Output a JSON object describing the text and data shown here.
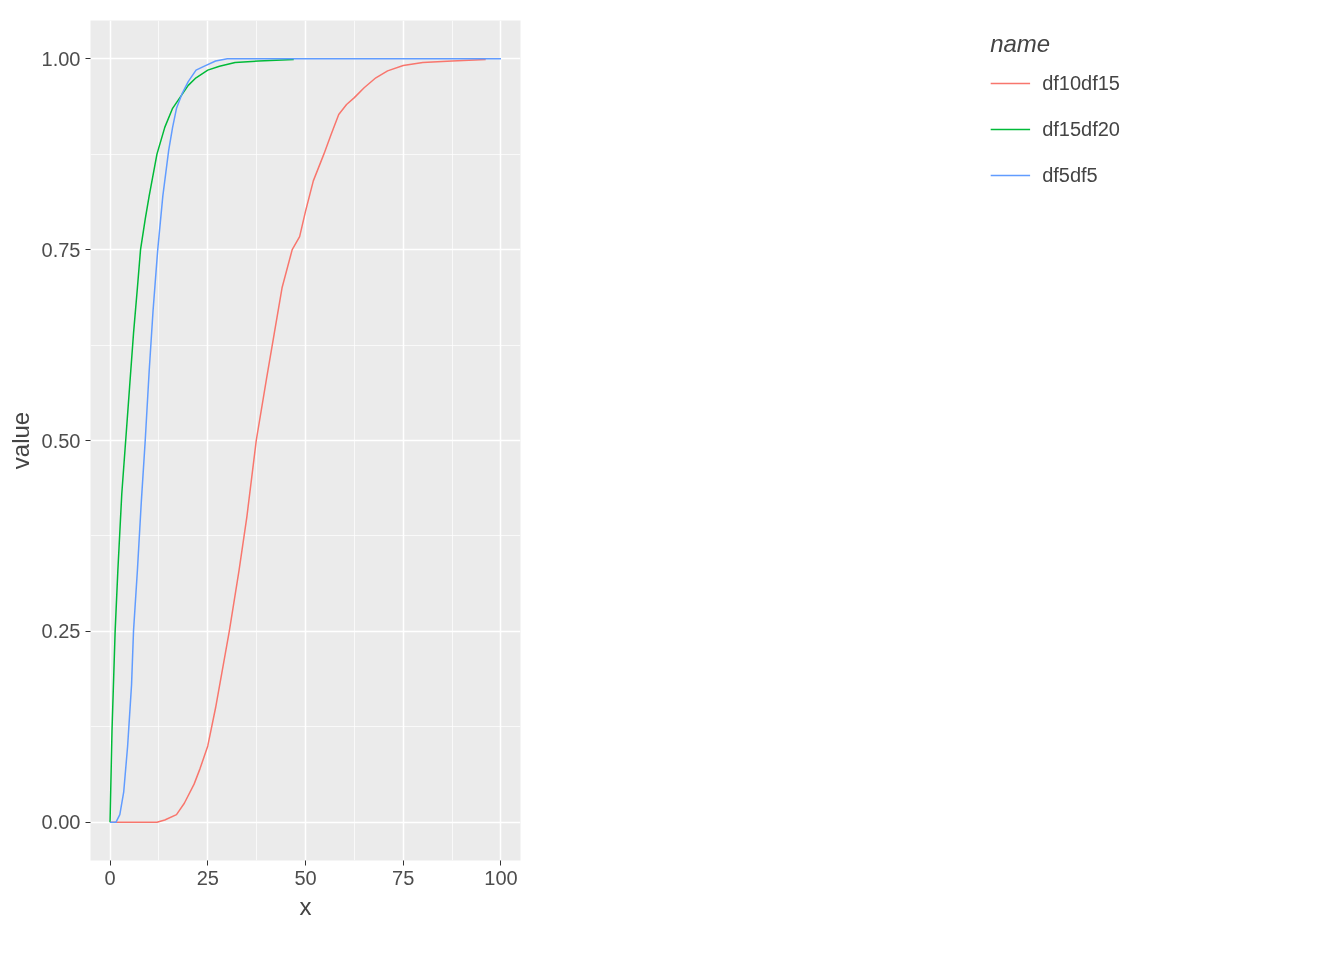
{
  "chart_data": {
    "type": "line",
    "xlabel": "x",
    "ylabel": "value",
    "legend_title": "name",
    "xlim": [
      -5,
      105
    ],
    "ylim": [
      -0.05,
      1.05
    ],
    "xticks": [
      0,
      25,
      50,
      75,
      100
    ],
    "yticks": [
      {
        "value": 0,
        "label": "0.00"
      },
      {
        "value": 0.25,
        "label": "0.25"
      },
      {
        "value": 0.5,
        "label": "0.50"
      },
      {
        "value": 0.75,
        "label": "0.75"
      },
      {
        "value": 1,
        "label": "1.00"
      }
    ],
    "grid": true,
    "legend": "right",
    "marker": "none",
    "line_style": "solid",
    "series": [
      {
        "name": "df10df15",
        "color": "#f8766d",
        "x": [
          0,
          10,
          12,
          14,
          17,
          19,
          21.5,
          23,
          25,
          27,
          30.5,
          33,
          35,
          37.4,
          40,
          42,
          44,
          46.6,
          48.5,
          50,
          52,
          54.7,
          56.5,
          58.5,
          60.5,
          62.5,
          65,
          68,
          71,
          75,
          80,
          87.5,
          96.1
        ],
        "values": [
          0,
          0,
          0,
          0.003,
          0.01,
          0.025,
          0.05,
          0.07,
          0.1,
          0.15,
          0.25,
          0.33,
          0.4,
          0.5,
          0.58,
          0.64,
          0.7,
          0.75,
          0.767,
          0.8,
          0.84,
          0.875,
          0.9,
          0.927,
          0.94,
          0.949,
          0.962,
          0.975,
          0.984,
          0.991,
          0.995,
          0.997,
          0.999
        ]
      },
      {
        "name": "df15df20",
        "color": "#00ba38",
        "x": [
          0,
          0.5,
          1.3,
          2,
          3,
          4,
          5,
          6,
          7,
          7.8,
          9,
          10,
          12,
          14,
          16,
          18,
          20,
          22,
          25,
          28,
          32,
          38,
          47
        ],
        "values": [
          0,
          0.12,
          0.25,
          0.33,
          0.43,
          0.5,
          0.57,
          0.64,
          0.7,
          0.75,
          0.79,
          0.82,
          0.875,
          0.91,
          0.935,
          0.95,
          0.965,
          0.975,
          0.985,
          0.99,
          0.995,
          0.997,
          0.999
        ]
      },
      {
        "name": "df5df5",
        "color": "#619cff",
        "x": [
          0,
          1.5,
          2.5,
          3.5,
          4.5,
          5.5,
          6,
          7,
          8,
          9,
          10,
          11,
          12.2,
          13.5,
          15,
          16,
          17,
          18.5,
          20,
          22,
          24,
          27,
          30,
          40,
          100
        ],
        "values": [
          0,
          0,
          0.01,
          0.04,
          0.1,
          0.18,
          0.25,
          0.33,
          0.42,
          0.5,
          0.59,
          0.67,
          0.75,
          0.82,
          0.88,
          0.91,
          0.935,
          0.955,
          0.97,
          0.985,
          0.99,
          0.997,
          1.0,
          1.0,
          1.0
        ]
      }
    ]
  }
}
